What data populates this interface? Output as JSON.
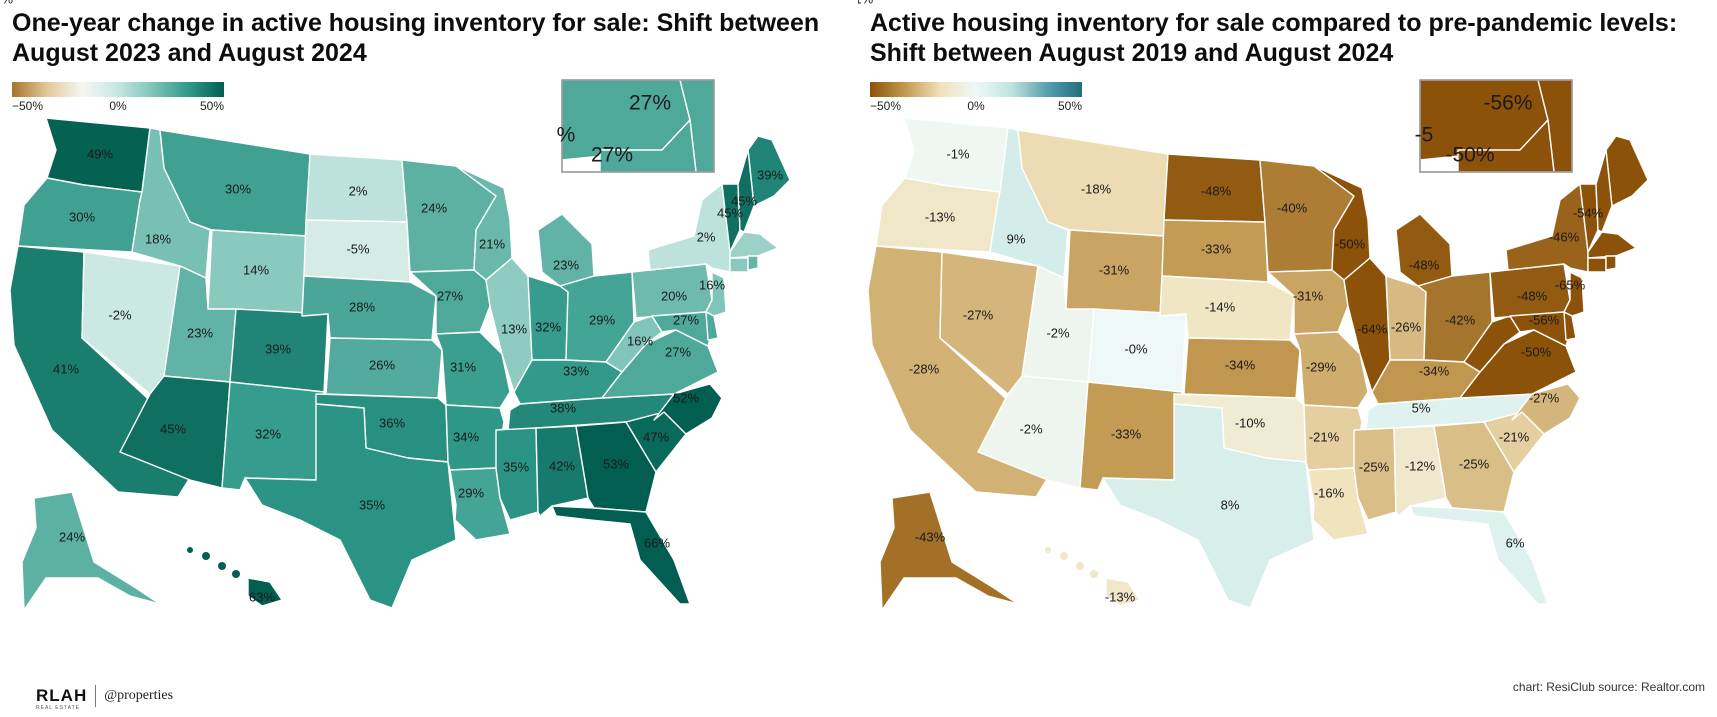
{
  "colors": {
    "left_scale": [
      "#a8732a",
      "#e2c99b",
      "#f7f7f2",
      "#c6e6e1",
      "#7ec3b7",
      "#30998a",
      "#015e50"
    ],
    "right_scale": [
      "#8c5209",
      "#c39a53",
      "#f1e2bb",
      "#eef8f6",
      "#bfe4e0",
      "#5a9fad",
      "#1f6f7f"
    ],
    "stroke": "#ffffff"
  },
  "panels": [
    {
      "title": "One-year change in active housing inventory for sale: Shift between August 2023 and August 2024",
      "legend": {
        "min_label": "−50%",
        "mid_label": "0%",
        "max_label": "50%",
        "min": -50,
        "max": 50
      },
      "inset_labels": [
        "27%",
        "27%",
        "%"
      ]
    },
    {
      "title": "Active housing inventory for sale compared to pre-pandemic levels: Shift between August 2019 and August 2024",
      "legend": {
        "min_label": "−50%",
        "mid_label": "0%",
        "max_label": "50%",
        "min": -50,
        "max": 50
      },
      "inset_labels": [
        "-56%",
        "-50%",
        "-5"
      ]
    }
  ],
  "chart_data": [
    {
      "type": "choropleth",
      "title": "One-year change in active housing inventory for sale: Shift between August 2023 and August 2024",
      "unit": "%",
      "scale": {
        "min": -50,
        "max": 50,
        "mid": 0
      },
      "regions": [
        {
          "name": "WA",
          "value": 49,
          "label": "49%"
        },
        {
          "name": "OR",
          "value": 30,
          "label": "30%"
        },
        {
          "name": "CA",
          "value": 41,
          "label": "41%"
        },
        {
          "name": "NV",
          "value": -2,
          "label": "-2%"
        },
        {
          "name": "ID",
          "value": 18,
          "label": "18%"
        },
        {
          "name": "MT",
          "value": 30,
          "label": "30%"
        },
        {
          "name": "WY",
          "value": 14,
          "label": "14%"
        },
        {
          "name": "UT",
          "value": 23,
          "label": "23%"
        },
        {
          "name": "AZ",
          "value": 45,
          "label": "45%"
        },
        {
          "name": "CO",
          "value": 39,
          "label": "39%"
        },
        {
          "name": "NM",
          "value": 32,
          "label": "32%"
        },
        {
          "name": "ND",
          "value": 2,
          "label": "2%"
        },
        {
          "name": "SD",
          "value": -5,
          "label": "-5%"
        },
        {
          "name": "NE",
          "value": 28,
          "label": "28%"
        },
        {
          "name": "KS",
          "value": 26,
          "label": "26%"
        },
        {
          "name": "OK",
          "value": 36,
          "label": "36%"
        },
        {
          "name": "TX",
          "value": 35,
          "label": "35%"
        },
        {
          "name": "MN",
          "value": 24,
          "label": "24%"
        },
        {
          "name": "IA",
          "value": 27,
          "label": "27%"
        },
        {
          "name": "MO",
          "value": 31,
          "label": "31%"
        },
        {
          "name": "AR",
          "value": 34,
          "label": "34%"
        },
        {
          "name": "LA",
          "value": 29,
          "label": "29%"
        },
        {
          "name": "WI",
          "value": 21,
          "label": "21%"
        },
        {
          "name": "IL",
          "value": 13,
          "label": "13%"
        },
        {
          "name": "MI",
          "value": 23,
          "label": "23%"
        },
        {
          "name": "IN",
          "value": 32,
          "label": "32%"
        },
        {
          "name": "OH",
          "value": 29,
          "label": "29%"
        },
        {
          "name": "KY",
          "value": 33,
          "label": "33%"
        },
        {
          "name": "TN",
          "value": 38,
          "label": "38%"
        },
        {
          "name": "MS",
          "value": 35,
          "label": "35%"
        },
        {
          "name": "AL",
          "value": 42,
          "label": "42%"
        },
        {
          "name": "GA",
          "value": 53,
          "label": "53%"
        },
        {
          "name": "FL",
          "value": 66,
          "label": "66%"
        },
        {
          "name": "SC",
          "value": 47,
          "label": "47%"
        },
        {
          "name": "NC",
          "value": 52,
          "label": "52%"
        },
        {
          "name": "VA",
          "value": 27,
          "label": "27%"
        },
        {
          "name": "WV",
          "value": 16,
          "label": "16%"
        },
        {
          "name": "PA",
          "value": 20,
          "label": "20%"
        },
        {
          "name": "NY",
          "value": 2,
          "label": "2%"
        },
        {
          "name": "NJ",
          "value": 16,
          "label": "16%"
        },
        {
          "name": "MD",
          "value": 27,
          "label": "27%"
        },
        {
          "name": "VT",
          "value": 45,
          "label": "45%"
        },
        {
          "name": "ME",
          "value": 39,
          "label": "39%"
        },
        {
          "name": "NH",
          "value": 45,
          "label": "45%"
        },
        {
          "name": "MA",
          "value": 10,
          "label": ""
        },
        {
          "name": "CT",
          "value": 14,
          "label": ""
        },
        {
          "name": "RI",
          "value": 22,
          "label": ""
        },
        {
          "name": "DE",
          "value": 27,
          "label": "27%"
        },
        {
          "name": "AK",
          "value": 24,
          "label": "24%"
        },
        {
          "name": "HI",
          "value": 63,
          "label": "63%"
        }
      ]
    },
    {
      "type": "choropleth",
      "title": "Active housing inventory for sale compared to pre-pandemic levels: Shift between August 2019 and August 2024",
      "unit": "%",
      "scale": {
        "min": -50,
        "max": 50,
        "mid": 0
      },
      "regions": [
        {
          "name": "WA",
          "value": -1,
          "label": "-1%"
        },
        {
          "name": "OR",
          "value": -13,
          "label": "-13%"
        },
        {
          "name": "CA",
          "value": -28,
          "label": "-28%"
        },
        {
          "name": "NV",
          "value": -27,
          "label": "-27%"
        },
        {
          "name": "ID",
          "value": 9,
          "label": "9%"
        },
        {
          "name": "MT",
          "value": -18,
          "label": "-18%"
        },
        {
          "name": "WY",
          "value": -31,
          "label": "-31%"
        },
        {
          "name": "UT",
          "value": -2,
          "label": "-2%"
        },
        {
          "name": "AZ",
          "value": -2,
          "label": "-2%"
        },
        {
          "name": "CO",
          "value": 0,
          "label": "-0%"
        },
        {
          "name": "NM",
          "value": -33,
          "label": "-33%"
        },
        {
          "name": "ND",
          "value": -48,
          "label": "-48%"
        },
        {
          "name": "SD",
          "value": -33,
          "label": "-33%"
        },
        {
          "name": "NE",
          "value": -14,
          "label": "-14%"
        },
        {
          "name": "KS",
          "value": -34,
          "label": "-34%"
        },
        {
          "name": "OK",
          "value": -10,
          "label": "-10%"
        },
        {
          "name": "TX",
          "value": 8,
          "label": "8%"
        },
        {
          "name": "MN",
          "value": -40,
          "label": "-40%"
        },
        {
          "name": "IA",
          "value": -31,
          "label": "-31%"
        },
        {
          "name": "MO",
          "value": -29,
          "label": "-29%"
        },
        {
          "name": "AR",
          "value": -21,
          "label": "-21%"
        },
        {
          "name": "LA",
          "value": -16,
          "label": "-16%"
        },
        {
          "name": "WI",
          "value": -50,
          "label": "-50%"
        },
        {
          "name": "IL",
          "value": -64,
          "label": "-64%"
        },
        {
          "name": "MI",
          "value": -48,
          "label": "-48%"
        },
        {
          "name": "IN",
          "value": -26,
          "label": "-26%"
        },
        {
          "name": "OH",
          "value": -42,
          "label": "-42%"
        },
        {
          "name": "KY",
          "value": -34,
          "label": "-34%"
        },
        {
          "name": "TN",
          "value": 5,
          "label": "5%"
        },
        {
          "name": "MS",
          "value": -25,
          "label": "-25%"
        },
        {
          "name": "AL",
          "value": -12,
          "label": "-12%"
        },
        {
          "name": "GA",
          "value": -25,
          "label": "-25%"
        },
        {
          "name": "FL",
          "value": 6,
          "label": "6%"
        },
        {
          "name": "SC",
          "value": -21,
          "label": "-21%"
        },
        {
          "name": "NC",
          "value": -27,
          "label": "-27%"
        },
        {
          "name": "VA",
          "value": -50,
          "label": "-50%"
        },
        {
          "name": "WV",
          "value": -50,
          "label": ""
        },
        {
          "name": "PA",
          "value": -48,
          "label": "-48%"
        },
        {
          "name": "NY",
          "value": -46,
          "label": "-46%"
        },
        {
          "name": "NJ",
          "value": -65,
          "label": "-65%"
        },
        {
          "name": "MD",
          "value": -56,
          "label": "-56%"
        },
        {
          "name": "VT",
          "value": -54,
          "label": "-54%"
        },
        {
          "name": "ME",
          "value": -55,
          "label": ""
        },
        {
          "name": "NH",
          "value": -54,
          "label": ""
        },
        {
          "name": "MA",
          "value": -51,
          "label": "-51%"
        },
        {
          "name": "CT",
          "value": -60,
          "label": ""
        },
        {
          "name": "RI",
          "value": -55,
          "label": ""
        },
        {
          "name": "DE",
          "value": -56,
          "label": ""
        },
        {
          "name": "AK",
          "value": -43,
          "label": "-43%"
        },
        {
          "name": "HI",
          "value": -13,
          "label": "-13%"
        }
      ]
    }
  ],
  "footer": {
    "logo_text": "RLAH",
    "logo_sub": "REAL ESTATE",
    "partner_text": "@properties",
    "credit": "chart: ResiClub  source: Realtor.com"
  }
}
